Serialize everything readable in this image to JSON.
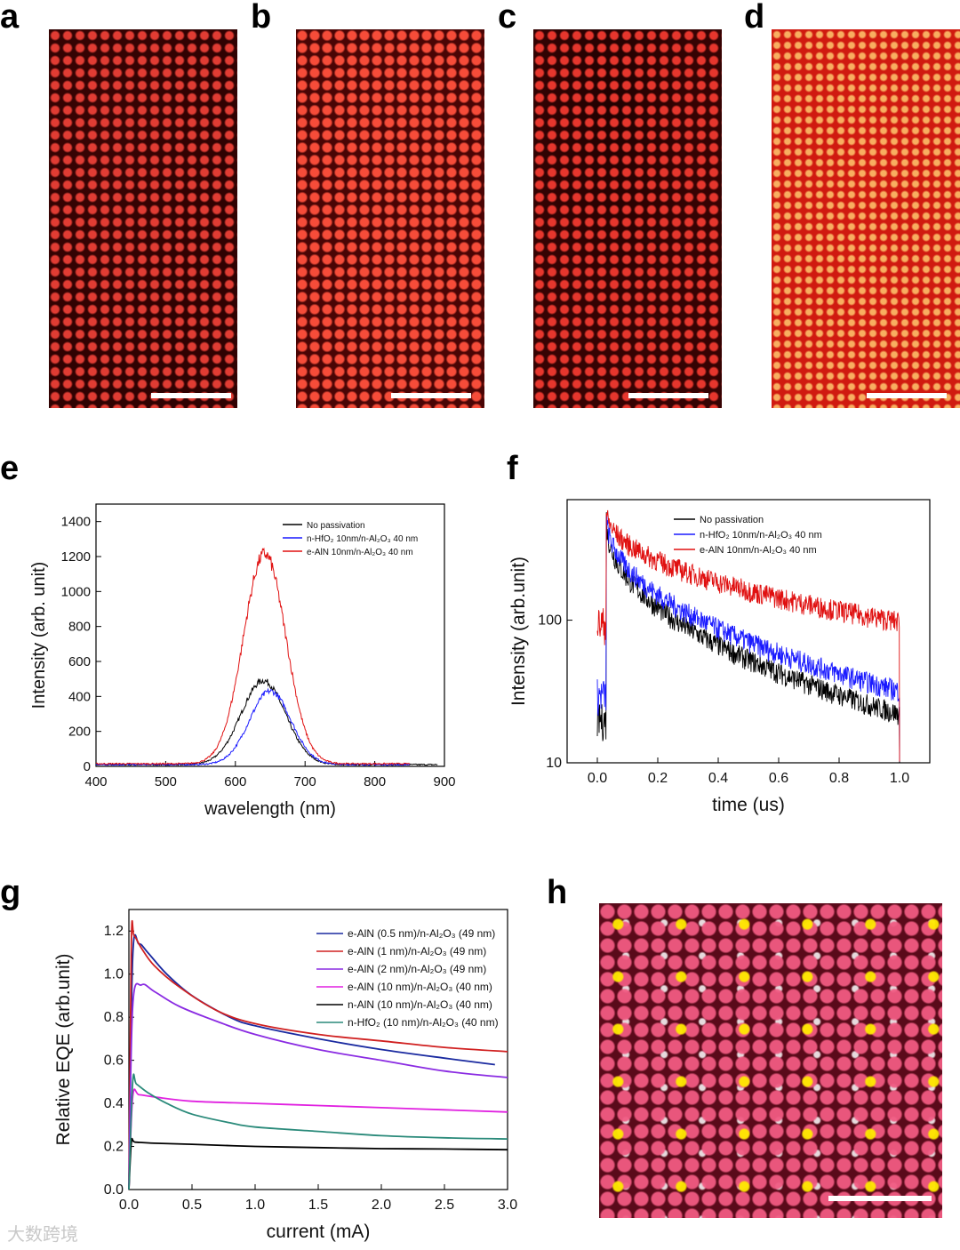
{
  "panels": {
    "a": "a",
    "b": "b",
    "c": "c",
    "d": "d",
    "e": "e",
    "f": "f",
    "g": "g",
    "h": "h"
  },
  "watermark": "大数跨境",
  "colors": {
    "black": "#000000",
    "blue": "#1a1aff",
    "red": "#e01010",
    "navy": "#1a2aa0",
    "crimson": "#d02020",
    "purple": "#8a2be2",
    "magenta": "#e020e0",
    "teal": "#2a8a7a"
  },
  "chart_data": [
    {
      "id": "e",
      "type": "line",
      "xlabel": "wavelength (nm)",
      "ylabel": "Intensity (arb. unit)",
      "xlim": [
        400,
        900
      ],
      "ylim": [
        0,
        1500
      ],
      "xticks": [
        400,
        500,
        600,
        700,
        800,
        900
      ],
      "yticks": [
        0,
        200,
        400,
        600,
        800,
        1000,
        1200,
        1400
      ],
      "legend_position": "top-right",
      "series": [
        {
          "name": "No passivation",
          "color": "#000000",
          "peak_x": 640,
          "peak_y": 480,
          "width": 45,
          "base": 10,
          "end_x": 890
        },
        {
          "name": "n-HfO₂ 10nm/n-Al₂O₃ 40 nm",
          "color": "#1a1aff",
          "peak_x": 650,
          "peak_y": 420,
          "width": 42,
          "base": 10,
          "end_x": 850
        },
        {
          "name": "e-AlN 10nm/n-Al₂O₃ 40 nm",
          "color": "#e01010",
          "peak_x": 642,
          "peak_y": 1200,
          "width": 43,
          "base": 15,
          "end_x": 850
        }
      ]
    },
    {
      "id": "f",
      "type": "line",
      "xlabel": "time (us)",
      "ylabel": "Intensity (arb.unit)",
      "xlim": [
        -0.1,
        1.1
      ],
      "ylim": [
        10,
        700
      ],
      "yscale": "log",
      "xticks": [
        0.0,
        0.2,
        0.4,
        0.6,
        0.8,
        1.0
      ],
      "yticks": [
        10,
        100
      ],
      "legend_position": "top-right",
      "series": [
        {
          "name": "No passivation",
          "color": "#000000",
          "pre": 20,
          "peak": 520,
          "end": 22,
          "t0": 0.03
        },
        {
          "name": "n-HfO₂ 10nm/n-Al₂O₃ 40 nm",
          "color": "#1a1aff",
          "pre": 30,
          "peak": 560,
          "end": 32,
          "t0": 0.03
        },
        {
          "name": "e-AlN 10nm/n-Al₂O₃ 40 nm",
          "color": "#e01010",
          "pre": 95,
          "peak": 600,
          "end": 98,
          "t0": 0.03
        }
      ]
    },
    {
      "id": "g",
      "type": "line",
      "xlabel": "current (mA)",
      "ylabel": "Relative EQE (arb.unit)",
      "xlim": [
        0,
        3.0
      ],
      "ylim": [
        0,
        1.3
      ],
      "xticks": [
        0.0,
        0.5,
        1.0,
        1.5,
        2.0,
        2.5,
        3.0
      ],
      "yticks": [
        0.0,
        0.2,
        0.4,
        0.6,
        0.8,
        1.0,
        1.2
      ],
      "legend_position": "top-right",
      "series": [
        {
          "name": "e-AlN (0.5 nm)/n-Al₂O₃ (49 nm)",
          "color": "#1a2aa0",
          "x": [
            0,
            0.03,
            0.08,
            0.15,
            0.3,
            0.5,
            0.8,
            1.0,
            1.5,
            2.0,
            2.5,
            2.9
          ],
          "y": [
            0,
            1.08,
            1.14,
            1.1,
            1.0,
            0.9,
            0.8,
            0.76,
            0.7,
            0.65,
            0.61,
            0.58
          ]
        },
        {
          "name": "e-AlN (1 nm)/n-Al₂O₃ (49 nm)",
          "color": "#d02020",
          "x": [
            0,
            0.02,
            0.04,
            0.1,
            0.2,
            0.4,
            0.7,
            1.0,
            1.5,
            2.0,
            2.5,
            3.0
          ],
          "y": [
            0,
            1.15,
            1.18,
            1.12,
            1.04,
            0.94,
            0.83,
            0.77,
            0.72,
            0.69,
            0.66,
            0.64
          ]
        },
        {
          "name": "e-AlN (2 nm)/n-Al₂O₃ (49 nm)",
          "color": "#8a2be2",
          "x": [
            0,
            0.03,
            0.1,
            0.2,
            0.4,
            0.7,
            1.0,
            1.5,
            2.0,
            2.5,
            3.0
          ],
          "y": [
            0,
            0.85,
            0.95,
            0.92,
            0.85,
            0.78,
            0.72,
            0.65,
            0.6,
            0.55,
            0.52
          ]
        },
        {
          "name": "e-AlN (10 nm)/n-Al₂O₃ (40 nm)",
          "color": "#e020e0",
          "x": [
            0,
            0.03,
            0.08,
            0.2,
            0.5,
            1.0,
            1.5,
            2.0,
            2.5,
            3.0
          ],
          "y": [
            0,
            0.43,
            0.44,
            0.43,
            0.41,
            0.4,
            0.39,
            0.38,
            0.37,
            0.36
          ]
        },
        {
          "name": "n-AlN (10 nm)/n-Al₂O₃ (40 nm)",
          "color": "#000000",
          "x": [
            0,
            0.02,
            0.05,
            0.2,
            0.5,
            1.0,
            1.5,
            2.0,
            2.5,
            3.0
          ],
          "y": [
            0,
            0.22,
            0.22,
            0.215,
            0.21,
            0.2,
            0.195,
            0.19,
            0.188,
            0.185
          ]
        },
        {
          "name": "n-HfO₂ (10 nm)/n-Al₂O₃ (40 nm)",
          "color": "#2a8a7a",
          "x": [
            0,
            0.03,
            0.06,
            0.15,
            0.3,
            0.5,
            0.8,
            1.0,
            1.5,
            2.0,
            2.5,
            3.0
          ],
          "y": [
            0,
            0.5,
            0.49,
            0.45,
            0.4,
            0.35,
            0.31,
            0.29,
            0.27,
            0.25,
            0.24,
            0.235
          ]
        }
      ]
    }
  ]
}
